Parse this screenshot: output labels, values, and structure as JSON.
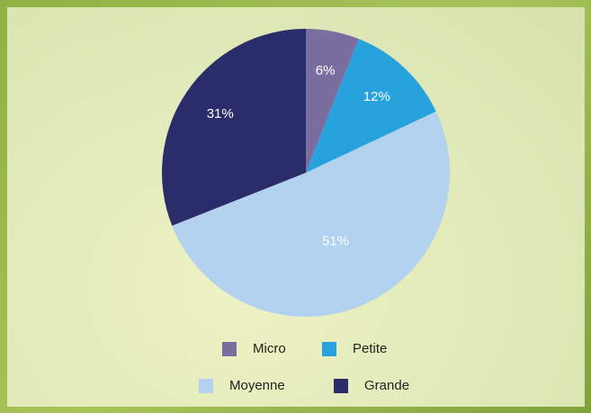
{
  "chart_data": {
    "type": "pie",
    "categories": [
      "Micro",
      "Petite",
      "Moyenne",
      "Grande"
    ],
    "values": [
      6,
      12,
      51,
      31
    ],
    "value_labels": [
      "6%",
      "12%",
      "51%",
      "31%"
    ],
    "colors": [
      "#7a6ea1",
      "#27a2dd",
      "#b3d2ef",
      "#2a2d6a"
    ],
    "legend": "bottom"
  }
}
